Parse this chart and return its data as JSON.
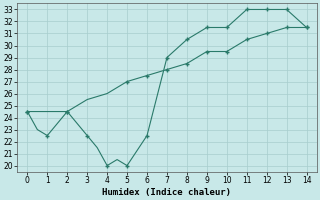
{
  "line1_x": [
    0,
    0.5,
    1,
    2,
    3,
    3.5,
    4,
    4.5,
    5,
    6,
    7,
    8,
    9,
    10,
    11,
    12,
    13,
    14
  ],
  "line1_y": [
    24.5,
    23.0,
    22.5,
    24.5,
    22.5,
    21.5,
    20.0,
    20.5,
    20.0,
    22.5,
    29.0,
    30.5,
    31.5,
    31.5,
    33.0,
    33.0,
    33.0,
    31.5
  ],
  "line2_x": [
    0,
    2,
    3,
    4,
    5,
    6,
    7,
    8,
    9,
    10,
    11,
    12,
    13,
    14
  ],
  "line2_y": [
    24.5,
    24.5,
    25.5,
    26.0,
    27.0,
    27.5,
    28.0,
    28.5,
    29.5,
    29.5,
    30.5,
    31.0,
    31.5,
    31.5
  ],
  "marker1_x": [
    0,
    1,
    2,
    3,
    4,
    5,
    6,
    7,
    8,
    9,
    10,
    11,
    12,
    13,
    14
  ],
  "marker1_y": [
    24.5,
    22.5,
    24.5,
    22.5,
    20.0,
    20.0,
    22.5,
    29.0,
    30.5,
    31.5,
    31.5,
    33.0,
    33.0,
    33.0,
    31.5
  ],
  "marker2_x": [
    0,
    2,
    5,
    6,
    7,
    8,
    9,
    10,
    11,
    12,
    13,
    14
  ],
  "marker2_y": [
    24.5,
    24.5,
    27.0,
    27.5,
    28.0,
    28.5,
    29.5,
    29.5,
    30.5,
    31.0,
    31.5,
    31.5
  ],
  "line_color": "#2a7a6a",
  "bg_color": "#c8e8e8",
  "grid_color": "#a8cece",
  "xlabel": "Humidex (Indice chaleur)",
  "xlim": [
    -0.5,
    14.5
  ],
  "ylim": [
    19.5,
    33.5
  ],
  "yticks": [
    20,
    21,
    22,
    23,
    24,
    25,
    26,
    27,
    28,
    29,
    30,
    31,
    32,
    33
  ],
  "xticks": [
    0,
    1,
    2,
    3,
    4,
    5,
    6,
    7,
    8,
    9,
    10,
    11,
    12,
    13,
    14
  ],
  "xlabel_fontsize": 6.5,
  "tick_fontsize": 5.5
}
